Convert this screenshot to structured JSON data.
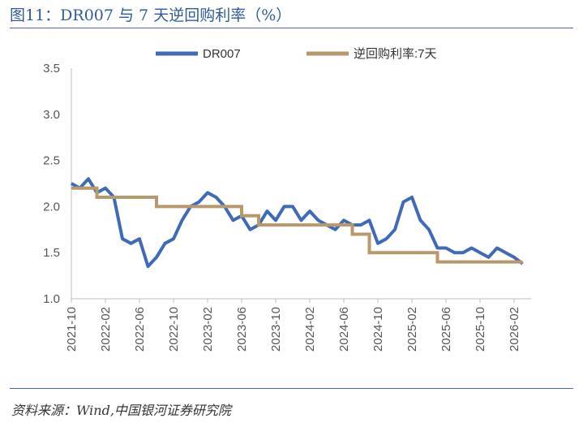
{
  "figure": {
    "title": "图11：DR007 与 7 天逆回购利率（%）",
    "source": "资料来源：Wind,中国银河证券研究院"
  },
  "chart_data": {
    "type": "line",
    "title": "图11：DR007 与 7 天逆回购利率（%）",
    "xlabel": "",
    "ylabel": "",
    "ylim": [
      1.0,
      3.5
    ],
    "yticks": [
      "1.0",
      "1.5",
      "2.0",
      "2.5",
      "3.0",
      "3.5"
    ],
    "xticks": [
      "2021-10",
      "2022-02",
      "2022-06",
      "2022-10",
      "2023-02",
      "2023-06",
      "2023-10",
      "2024-02",
      "2024-06",
      "2024-10",
      "2025-02",
      "2025-06",
      "2025-10",
      "2026-02"
    ],
    "xrange": [
      "2021-10",
      "2026-04"
    ],
    "grid": false,
    "legend": "top",
    "colors": {
      "dr007": "#3f6ab8",
      "repo": "#b89a6a",
      "axis": "#bfbfbf"
    },
    "series": [
      {
        "name": "DR007",
        "x": [
          "2021-10",
          "2021-11",
          "2021-12",
          "2022-01",
          "2022-02",
          "2022-03",
          "2022-04",
          "2022-05",
          "2022-06",
          "2022-07",
          "2022-08",
          "2022-09",
          "2022-10",
          "2022-11",
          "2022-12",
          "2023-01",
          "2023-02",
          "2023-03",
          "2023-04",
          "2023-05",
          "2023-06",
          "2023-07",
          "2023-08",
          "2023-09",
          "2023-10",
          "2023-11",
          "2023-12",
          "2024-01",
          "2024-02",
          "2024-03",
          "2024-04",
          "2024-05",
          "2024-06",
          "2024-07",
          "2024-08",
          "2024-09",
          "2024-10",
          "2024-11",
          "2024-12",
          "2025-01",
          "2025-02",
          "2025-03",
          "2025-04",
          "2025-05",
          "2025-06",
          "2025-07",
          "2025-08",
          "2025-09",
          "2025-10",
          "2025-11",
          "2025-12",
          "2026-01",
          "2026-02",
          "2026-03"
        ],
        "values": [
          2.25,
          2.2,
          2.3,
          2.15,
          2.2,
          2.1,
          1.65,
          1.6,
          1.65,
          1.35,
          1.45,
          1.6,
          1.65,
          1.85,
          2.0,
          2.05,
          2.15,
          2.1,
          2.0,
          1.85,
          1.9,
          1.75,
          1.8,
          1.95,
          1.85,
          2.0,
          2.0,
          1.85,
          1.95,
          1.85,
          1.8,
          1.75,
          1.85,
          1.8,
          1.8,
          1.85,
          1.6,
          1.65,
          1.75,
          2.05,
          2.1,
          1.85,
          1.75,
          1.55,
          1.55,
          1.5,
          1.5,
          1.55,
          1.5,
          1.45,
          1.55,
          1.5,
          1.45,
          1.38
        ]
      },
      {
        "name": "逆回购利率:7天",
        "x": [
          "2021-10",
          "2022-01",
          "2022-08",
          "2023-06",
          "2023-08",
          "2024-07",
          "2024-09",
          "2025-05",
          "2026-03"
        ],
        "values": [
          2.2,
          2.1,
          2.0,
          1.9,
          1.8,
          1.7,
          1.5,
          1.4,
          1.4
        ],
        "step": true
      }
    ]
  }
}
